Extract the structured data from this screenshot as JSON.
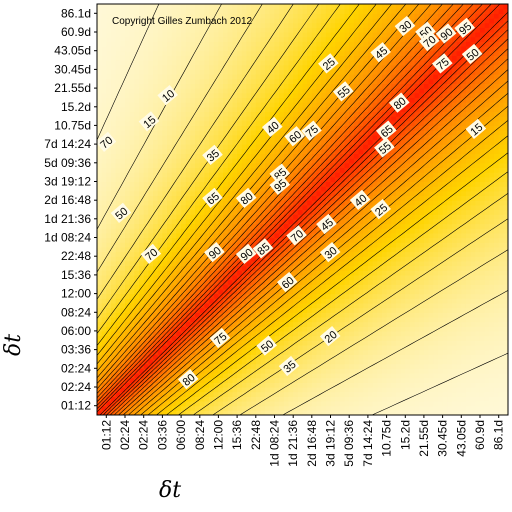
{
  "chart_data": {
    "type": "heatmap",
    "title": "",
    "copyright": "Copyright Gilles Zumbach 2012",
    "xlabel": "δt",
    "ylabel": "δt",
    "ticks": [
      "01:12",
      "02:24",
      "02:24",
      "03:36",
      "06:00",
      "08:24",
      "12:00",
      "15:36",
      "22:48",
      "1d 08:24",
      "1d 21:36",
      "2d 16:48",
      "3d 19:12",
      "5d 09:36",
      "7d 14:24",
      "10.75d",
      "15.2d",
      "21.55d",
      "30.45d",
      "43.05d",
      "60.9d",
      "86.1d"
    ],
    "contour_levels": [
      5,
      10,
      15,
      20,
      25,
      30,
      35,
      40,
      45,
      50,
      55,
      60,
      65,
      70,
      75,
      80,
      85,
      90,
      95
    ],
    "color_scale": {
      "low": "#fffbe6",
      "mid_low": "#ffd400",
      "mid": "#ff8a00",
      "high": "#ff2000"
    },
    "contour_labels": [
      {
        "text": "95",
        "x": 19.2,
        "y": 20.2
      },
      {
        "text": "90",
        "x": 18.2,
        "y": 19.9
      },
      {
        "text": "50",
        "x": 17.1,
        "y": 20.0
      },
      {
        "text": "30",
        "x": 16.0,
        "y": 20.3
      },
      {
        "text": "70",
        "x": 17.3,
        "y": 19.5
      },
      {
        "text": "75",
        "x": 18.0,
        "y": 18.3
      },
      {
        "text": "45",
        "x": 14.7,
        "y": 18.9
      },
      {
        "text": "25",
        "x": 11.9,
        "y": 18.3
      },
      {
        "text": "55",
        "x": 12.7,
        "y": 16.8
      },
      {
        "text": "80",
        "x": 15.7,
        "y": 16.2
      },
      {
        "text": "10",
        "x": 3.3,
        "y": 16.6
      },
      {
        "text": "15",
        "x": 2.3,
        "y": 15.2
      },
      {
        "text": "40",
        "x": 8.9,
        "y": 14.9
      },
      {
        "text": "60",
        "x": 10.1,
        "y": 14.4
      },
      {
        "text": "75",
        "x": 11.0,
        "y": 14.7
      },
      {
        "text": "65",
        "x": 15.0,
        "y": 14.7
      },
      {
        "text": "55",
        "x": 14.9,
        "y": 13.8
      },
      {
        "text": "35",
        "x": 5.7,
        "y": 13.4
      },
      {
        "text": "50",
        "x": 19.6,
        "y": 18.8
      },
      {
        "text": "15",
        "x": 19.8,
        "y": 14.8
      },
      {
        "text": "85",
        "x": 9.3,
        "y": 12.4
      },
      {
        "text": "95",
        "x": 9.3,
        "y": 11.8
      },
      {
        "text": "65",
        "x": 5.7,
        "y": 11.1
      },
      {
        "text": "80",
        "x": 7.5,
        "y": 11.1
      },
      {
        "text": "40",
        "x": 13.6,
        "y": 11.0
      },
      {
        "text": "25",
        "x": 14.7,
        "y": 10.5
      },
      {
        "text": "50",
        "x": 0.8,
        "y": 10.3
      },
      {
        "text": "45",
        "x": 11.8,
        "y": 9.7
      },
      {
        "text": "70",
        "x": 10.2,
        "y": 9.1
      },
      {
        "text": "90",
        "x": 5.8,
        "y": 8.2
      },
      {
        "text": "90",
        "x": 7.5,
        "y": 8.1
      },
      {
        "text": "85",
        "x": 8.4,
        "y": 8.4
      },
      {
        "text": "30",
        "x": 12.0,
        "y": 8.2
      },
      {
        "text": "70",
        "x": 2.4,
        "y": 8.1
      },
      {
        "text": "60",
        "x": 9.7,
        "y": 6.6
      },
      {
        "text": "20",
        "x": 12.0,
        "y": 3.7
      },
      {
        "text": "75",
        "x": 6.1,
        "y": 3.6
      },
      {
        "text": "50",
        "x": 8.6,
        "y": 3.2
      },
      {
        "text": "35",
        "x": 9.8,
        "y": 2.1
      },
      {
        "text": "80",
        "x": 4.4,
        "y": 1.4
      },
      {
        "text": "70",
        "x": 0.0,
        "y": 14.1
      }
    ]
  }
}
